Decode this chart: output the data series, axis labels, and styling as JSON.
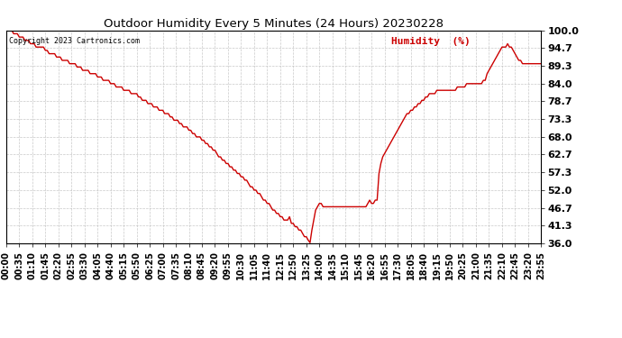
{
  "title": "Outdoor Humidity Every 5 Minutes (24 Hours) 20230228",
  "copyright_text": "Copyright 2023 Cartronics.com",
  "legend_label": "Humidity  (%)",
  "line_color": "#cc0000",
  "background_color": "#ffffff",
  "plot_background": "#ffffff",
  "grid_color": "#bbbbbb",
  "ylim": [
    36.0,
    100.0
  ],
  "yticks": [
    36.0,
    41.3,
    46.7,
    52.0,
    57.3,
    62.7,
    68.0,
    73.3,
    78.7,
    84.0,
    89.3,
    94.7,
    100.0
  ],
  "humidity_values": [
    100,
    100,
    100,
    100,
    99,
    99,
    99,
    98,
    98,
    98,
    97,
    97,
    97,
    96,
    96,
    96,
    95,
    95,
    95,
    95,
    95,
    94,
    94,
    93,
    93,
    93,
    93,
    92,
    92,
    92,
    91,
    91,
    91,
    91,
    90,
    90,
    90,
    90,
    89,
    89,
    89,
    88,
    88,
    88,
    88,
    87,
    87,
    87,
    87,
    86,
    86,
    86,
    85,
    85,
    85,
    85,
    84,
    84,
    84,
    83,
    83,
    83,
    83,
    82,
    82,
    82,
    82,
    81,
    81,
    81,
    81,
    80,
    80,
    79,
    79,
    79,
    78,
    78,
    78,
    77,
    77,
    77,
    76,
    76,
    76,
    75,
    75,
    75,
    74,
    74,
    73,
    73,
    73,
    72,
    72,
    71,
    71,
    71,
    70,
    70,
    69,
    69,
    68,
    68,
    68,
    67,
    67,
    66,
    66,
    65,
    65,
    64,
    64,
    63,
    62,
    62,
    61,
    61,
    60,
    60,
    59,
    59,
    58,
    58,
    57,
    57,
    56,
    56,
    55,
    55,
    54,
    53,
    53,
    52,
    52,
    51,
    51,
    50,
    49,
    49,
    48,
    48,
    47,
    46,
    46,
    45,
    45,
    44,
    44,
    43,
    43,
    43,
    44,
    42,
    42,
    41,
    41,
    40,
    40,
    39,
    38,
    38,
    37,
    36.2,
    40,
    43,
    46,
    47,
    48,
    48,
    47,
    47,
    47,
    47,
    47,
    47,
    47,
    47,
    47,
    47,
    47,
    47,
    47,
    47,
    47,
    47,
    47,
    47,
    47,
    47,
    47,
    47,
    47,
    47,
    48,
    49,
    48,
    48,
    49,
    49,
    57,
    60,
    62,
    63,
    64,
    65,
    66,
    67,
    68,
    69,
    70,
    71,
    72,
    73,
    74,
    75,
    75,
    76,
    76,
    77,
    77,
    78,
    78,
    79,
    79,
    80,
    80,
    81,
    81,
    81,
    81,
    82,
    82,
    82,
    82,
    82,
    82,
    82,
    82,
    82,
    82,
    82,
    83,
    83,
    83,
    83,
    83,
    84,
    84,
    84,
    84,
    84,
    84,
    84,
    84,
    84,
    85,
    85,
    87,
    88,
    89,
    90,
    91,
    92,
    93,
    94,
    95,
    95,
    95,
    96,
    95,
    95,
    94,
    93,
    92,
    91,
    91,
    90,
    90,
    90,
    90,
    90,
    90,
    90,
    90,
    90,
    90,
    90
  ]
}
